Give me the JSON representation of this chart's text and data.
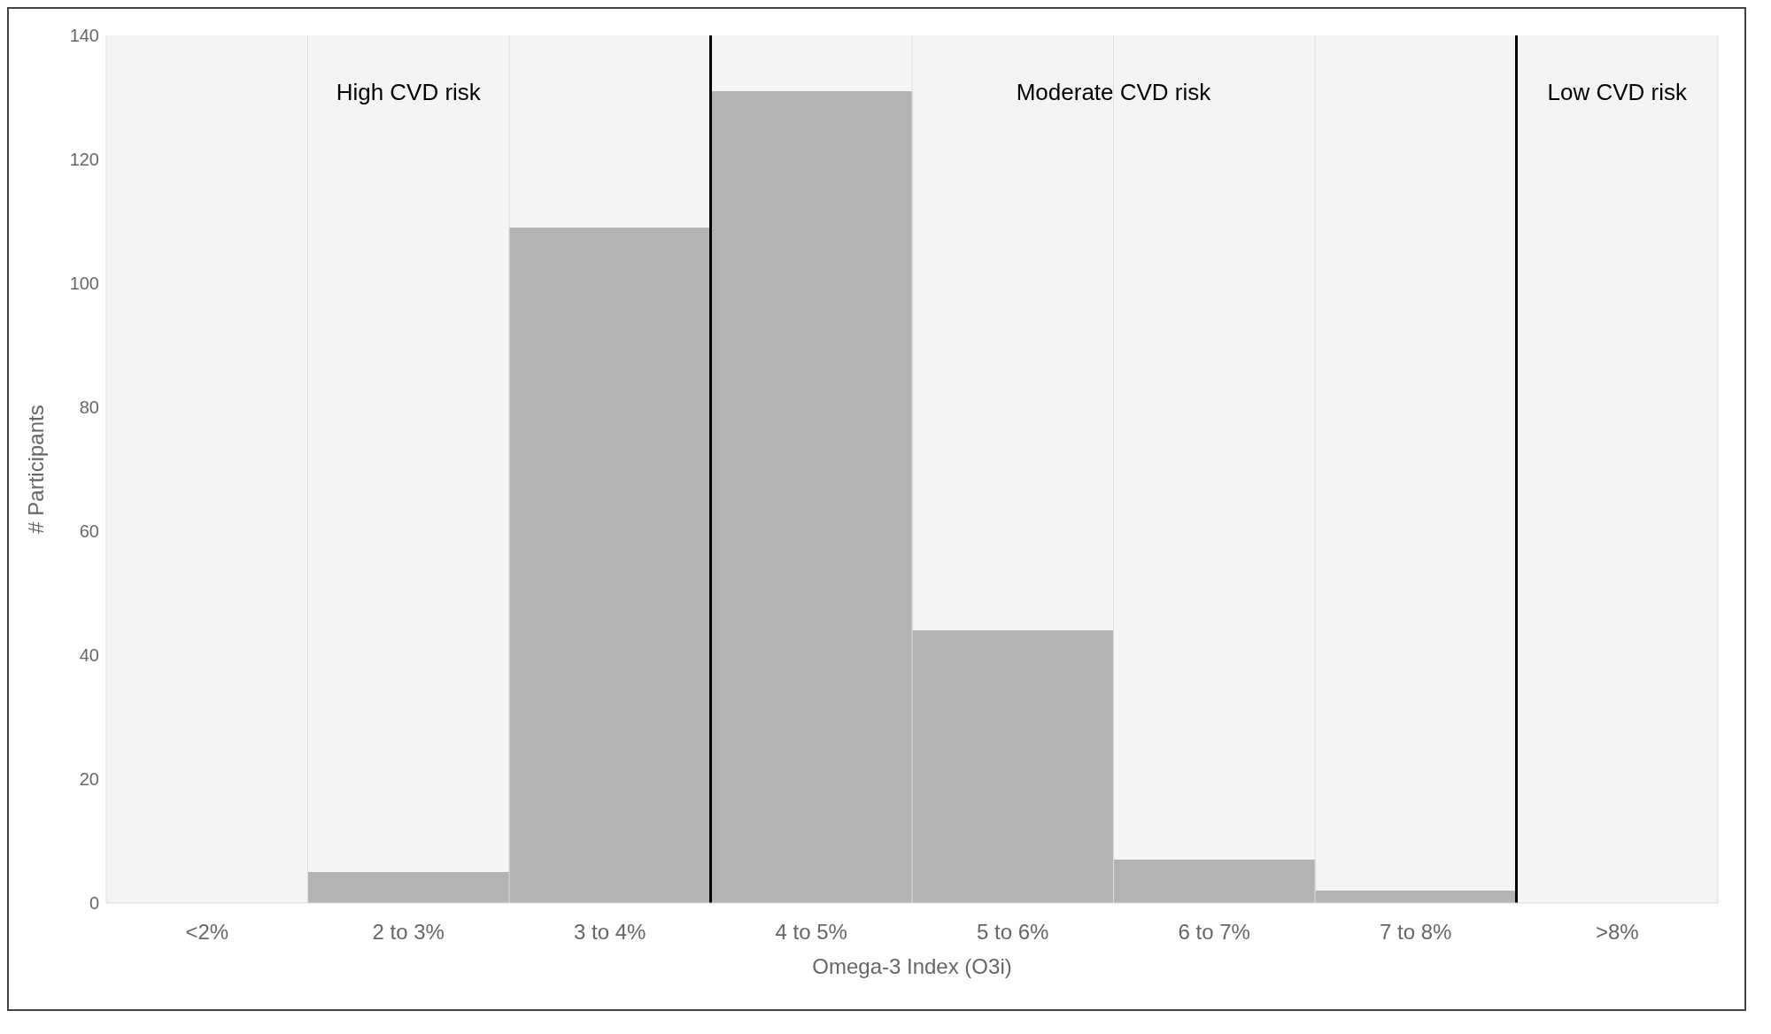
{
  "chart_data": {
    "type": "bar",
    "xlabel": "Omega-3 Index (O3i)",
    "ylabel": "# Participants",
    "categories": [
      "<2%",
      "2 to 3%",
      "3 to 4%",
      "4 to 5%",
      "5 to 6%",
      "6 to 7%",
      "7 to 8%",
      ">8%"
    ],
    "values": [
      0,
      5,
      109,
      131,
      44,
      7,
      2,
      0
    ],
    "color": "#b3b3b3",
    "ylim": [
      0,
      140
    ],
    "yticks": [
      0,
      20,
      40,
      60,
      80,
      100,
      120,
      140
    ],
    "grid": "x",
    "legend": false,
    "bands": [
      {
        "axis": "x",
        "from": "<2%",
        "to": "3 to 4%",
        "label": "High CVD risk",
        "color": "#f4f4f4"
      },
      {
        "axis": "x",
        "from": "4 to 5%",
        "to": "7 to 8%",
        "label": "Moderate CVD risk",
        "color": "#f4f4f4"
      },
      {
        "axis": "x",
        "from": ">8%",
        "to": ">8%",
        "label": "Low CVD risk",
        "color": "#f4f4f4"
      }
    ]
  }
}
